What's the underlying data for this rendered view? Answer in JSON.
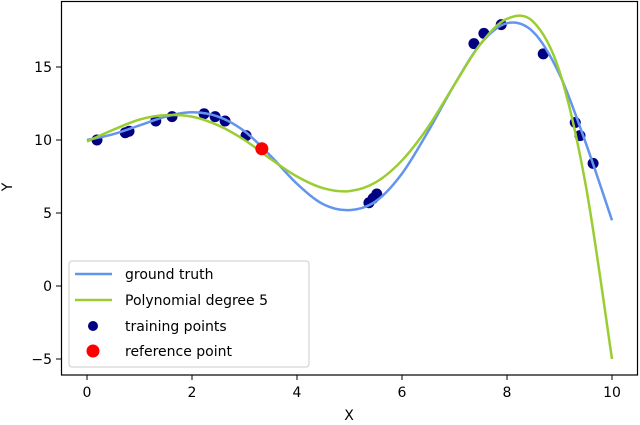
{
  "chart_data": {
    "type": "line",
    "title": "",
    "xlabel": "X",
    "ylabel": "Y",
    "xlim": [
      -0.5,
      10.5
    ],
    "ylim": [
      -6,
      19.6
    ],
    "grid": false,
    "legend_position": "lower left",
    "x_ticks": [
      0,
      2,
      4,
      6,
      8,
      10
    ],
    "x_tick_labels": [
      "0",
      "2",
      "4",
      "6",
      "8",
      "10"
    ],
    "y_ticks": [
      -5,
      0,
      5,
      10,
      15
    ],
    "y_tick_labels": [
      "−5",
      "0",
      "5",
      "10",
      "15"
    ],
    "series": [
      {
        "name": "ground truth",
        "kind": "line",
        "color": "#6495ed",
        "x": [
          0,
          0.5,
          1,
          1.5,
          2,
          2.5,
          3,
          3.5,
          4,
          4.5,
          5,
          5.5,
          6,
          6.5,
          7,
          7.5,
          8,
          8.5,
          9,
          9.5,
          10
        ],
        "y": [
          10.0,
          10.4,
          11.0,
          11.6,
          11.9,
          11.6,
          10.6,
          8.9,
          7.0,
          5.6,
          5.2,
          5.8,
          7.7,
          10.6,
          13.8,
          16.6,
          18.0,
          17.4,
          14.5,
          9.8,
          4.5
        ]
      },
      {
        "name": "Polynomial degree 5",
        "kind": "line",
        "color": "#9acd32",
        "x": [
          0,
          0.5,
          1,
          1.5,
          2,
          2.5,
          3,
          3.5,
          4,
          4.5,
          5,
          5.5,
          6,
          6.5,
          7,
          7.5,
          8,
          8.5,
          9,
          9.5,
          10
        ],
        "y": [
          9.9,
          10.7,
          11.4,
          11.7,
          11.6,
          11.0,
          10.0,
          8.7,
          7.5,
          6.7,
          6.5,
          7.1,
          8.6,
          10.9,
          13.8,
          16.6,
          18.3,
          18.1,
          14.7,
          6.9,
          -5.0
        ]
      },
      {
        "name": "training points",
        "kind": "scatter",
        "color": "#000080",
        "x": [
          0.19,
          0.73,
          0.8,
          1.31,
          1.62,
          2.23,
          2.44,
          2.63,
          3.03,
          5.37,
          5.45,
          5.52,
          7.37,
          7.56,
          7.89,
          8.69,
          9.3,
          9.39,
          9.64
        ],
        "y": [
          10.0,
          10.5,
          10.6,
          11.3,
          11.6,
          11.8,
          11.6,
          11.3,
          10.3,
          5.7,
          6.0,
          6.3,
          16.6,
          17.3,
          17.9,
          15.9,
          11.2,
          10.3,
          8.4
        ]
      },
      {
        "name": "reference point",
        "kind": "scatter",
        "color": "#ff0000",
        "x": [
          3.33
        ],
        "y": [
          9.4
        ]
      }
    ]
  },
  "legend": {
    "items": [
      {
        "label": "ground truth",
        "kind": "line",
        "color": "#6495ed"
      },
      {
        "label": "Polynomial degree 5",
        "kind": "line",
        "color": "#9acd32"
      },
      {
        "label": "training points",
        "kind": "marker",
        "color": "#000080"
      },
      {
        "label": "reference point",
        "kind": "marker",
        "color": "#ff0000"
      }
    ]
  },
  "axes": {
    "xlabel": "X",
    "ylabel": "Y"
  }
}
